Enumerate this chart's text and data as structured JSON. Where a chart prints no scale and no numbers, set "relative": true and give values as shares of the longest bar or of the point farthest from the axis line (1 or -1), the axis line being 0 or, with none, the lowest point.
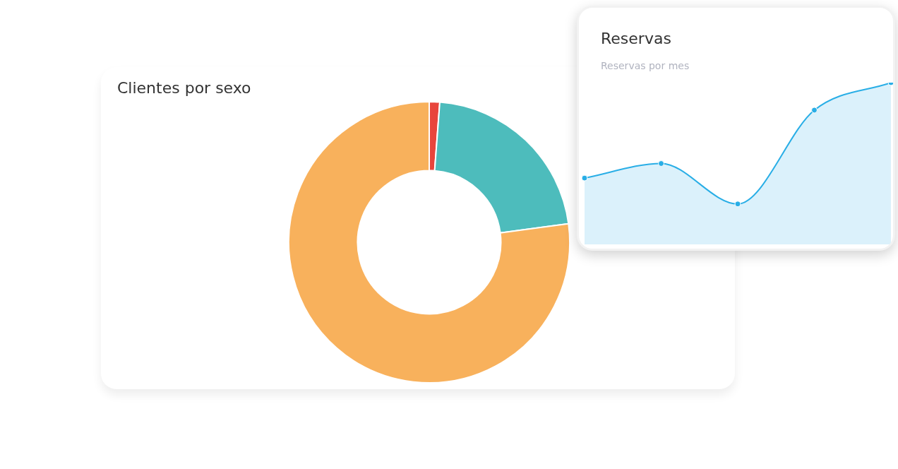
{
  "chart_data": [
    {
      "type": "donut",
      "title": "Clientes por sexo",
      "categories": [
        null,
        null,
        null
      ],
      "values": [
        1.2,
        21.7,
        77.1
      ],
      "colors": [
        "#e8453c",
        "#4dbcbc",
        "#f8b15c"
      ],
      "legend": false
    },
    {
      "type": "area",
      "title": "Reservas",
      "subtitle": "Reservas por mes",
      "categories": [
        null,
        null,
        null,
        null,
        null
      ],
      "values": [
        0.41,
        0.5,
        0.25,
        0.83,
        1
      ],
      "color": "#29aee6",
      "relative": true,
      "marker": "circle",
      "legend": false
    }
  ]
}
